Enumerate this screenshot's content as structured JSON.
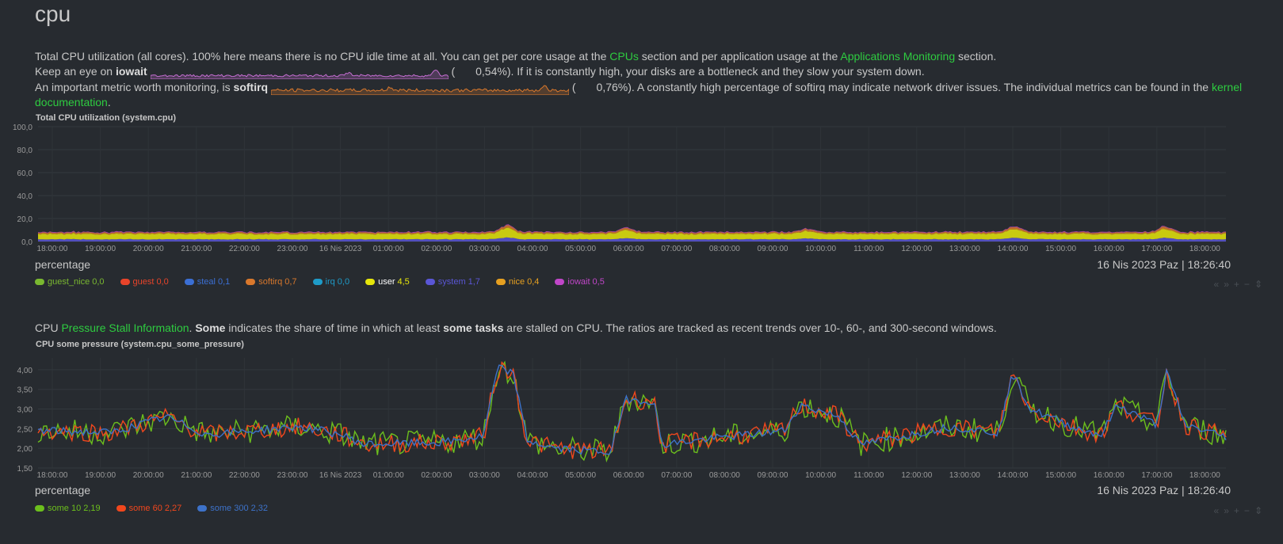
{
  "section": {
    "title": "cpu"
  },
  "intro": {
    "line1_a": "Total CPU utilization (all cores). 100% here means there is no CPU idle time at all. You can get per core usage at the ",
    "line1_link1": "CPUs",
    "line1_b": " section and per application usage at the ",
    "line1_link2": "Applications Monitoring",
    "line1_c": " section.",
    "line2_a": "Keep an eye on ",
    "line2_bold": "iowait",
    "line2_open": "(",
    "line2_value": "0,54%",
    "line2_b": "). If it is constantly high, your disks are a bottleneck and they slow your system down.",
    "line3_a": "An important metric worth monitoring, is ",
    "line3_bold": "softirq",
    "line3_open": "(",
    "line3_value": "0,76%",
    "line3_b": "). A constantly high percentage of softirq may indicate network driver issues. The individual metrics can be found in the ",
    "line3_link": "kernel",
    "line4_link": "documentation",
    "line4_end": "."
  },
  "sparklines": {
    "iowait_color": "#c46dd1",
    "softirq_color": "#d9782c"
  },
  "psi_intro": {
    "a": "CPU ",
    "link": "Pressure Stall Information",
    "b": ". ",
    "bold1": "Some",
    "c": " indicates the share of time in which at least ",
    "bold2": "some tasks",
    "d": " are stalled on CPU. The ratios are tracked as recent trends over 10-, 60-, and 300-second windows."
  },
  "chart_data": [
    {
      "type": "area",
      "title": "Total CPU utilization (system.cpu)",
      "units": "percentage",
      "datetime": "16 Nis 2023 Paz | 18:26:40",
      "ylim": [
        0,
        100
      ],
      "yticks": [
        "100,0",
        "80,0",
        "60,0",
        "40,0",
        "20,0",
        "0,0"
      ],
      "xticks": [
        "18:00:00",
        "19:00:00",
        "20:00:00",
        "21:00:00",
        "22:00:00",
        "23:00:00",
        "16 Nis 2023",
        "01:00:00",
        "02:00:00",
        "03:00:00",
        "04:00:00",
        "05:00:00",
        "06:00:00",
        "07:00:00",
        "08:00:00",
        "09:00:00",
        "10:00:00",
        "11:00:00",
        "12:00:00",
        "13:00:00",
        "14:00:00",
        "15:00:00",
        "16:00:00",
        "17:00:00",
        "18:00:00"
      ],
      "stacked_order": [
        "system",
        "user",
        "nice",
        "softirq",
        "iowait"
      ],
      "series": [
        {
          "name": "guest_nice",
          "value": "0,0",
          "color": "#7ab830"
        },
        {
          "name": "guest",
          "value": "0,0",
          "color": "#e8442a"
        },
        {
          "name": "steal",
          "value": "0,1",
          "color": "#3b6fd4"
        },
        {
          "name": "softirq",
          "value": "0,7",
          "color": "#d9782c"
        },
        {
          "name": "irq",
          "value": "0,0",
          "color": "#1e9bc8"
        },
        {
          "name": "user",
          "value": "4,5",
          "color": "#e6e60b"
        },
        {
          "name": "system",
          "value": "1,7",
          "color": "#5a56d6"
        },
        {
          "name": "nice",
          "value": "0,4",
          "color": "#e6a020"
        },
        {
          "name": "iowait",
          "value": "0,5",
          "color": "#c046c8"
        }
      ]
    },
    {
      "type": "line",
      "title": "CPU some pressure (system.cpu_some_pressure)",
      "units": "percentage",
      "datetime": "16 Nis 2023 Paz | 18:26:40",
      "ylim": [
        1.5,
        4.3
      ],
      "yticks": [
        "4,00",
        "3,50",
        "3,00",
        "2,50",
        "2,00",
        "1,50"
      ],
      "ytick_values": [
        4.0,
        3.5,
        3.0,
        2.5,
        2.0,
        1.5
      ],
      "xticks": [
        "18:00:00",
        "19:00:00",
        "20:00:00",
        "21:00:00",
        "22:00:00",
        "23:00:00",
        "16 Nis 2023",
        "01:00:00",
        "02:00:00",
        "03:00:00",
        "04:00:00",
        "05:00:00",
        "06:00:00",
        "07:00:00",
        "08:00:00",
        "09:00:00",
        "10:00:00",
        "11:00:00",
        "12:00:00",
        "13:00:00",
        "14:00:00",
        "15:00:00",
        "16:00:00",
        "17:00:00",
        "18:00:00"
      ],
      "series": [
        {
          "name": "some 10",
          "value": "2,19",
          "color": "#6cbf1d"
        },
        {
          "name": "some 60",
          "value": "2,27",
          "color": "#f1471d"
        },
        {
          "name": "some 300",
          "value": "2,32",
          "color": "#3d72c9"
        }
      ]
    }
  ],
  "toolbox": {
    "left": "«",
    "right": "»",
    "plus": "+",
    "minus": "−",
    "resize": "⇕"
  }
}
